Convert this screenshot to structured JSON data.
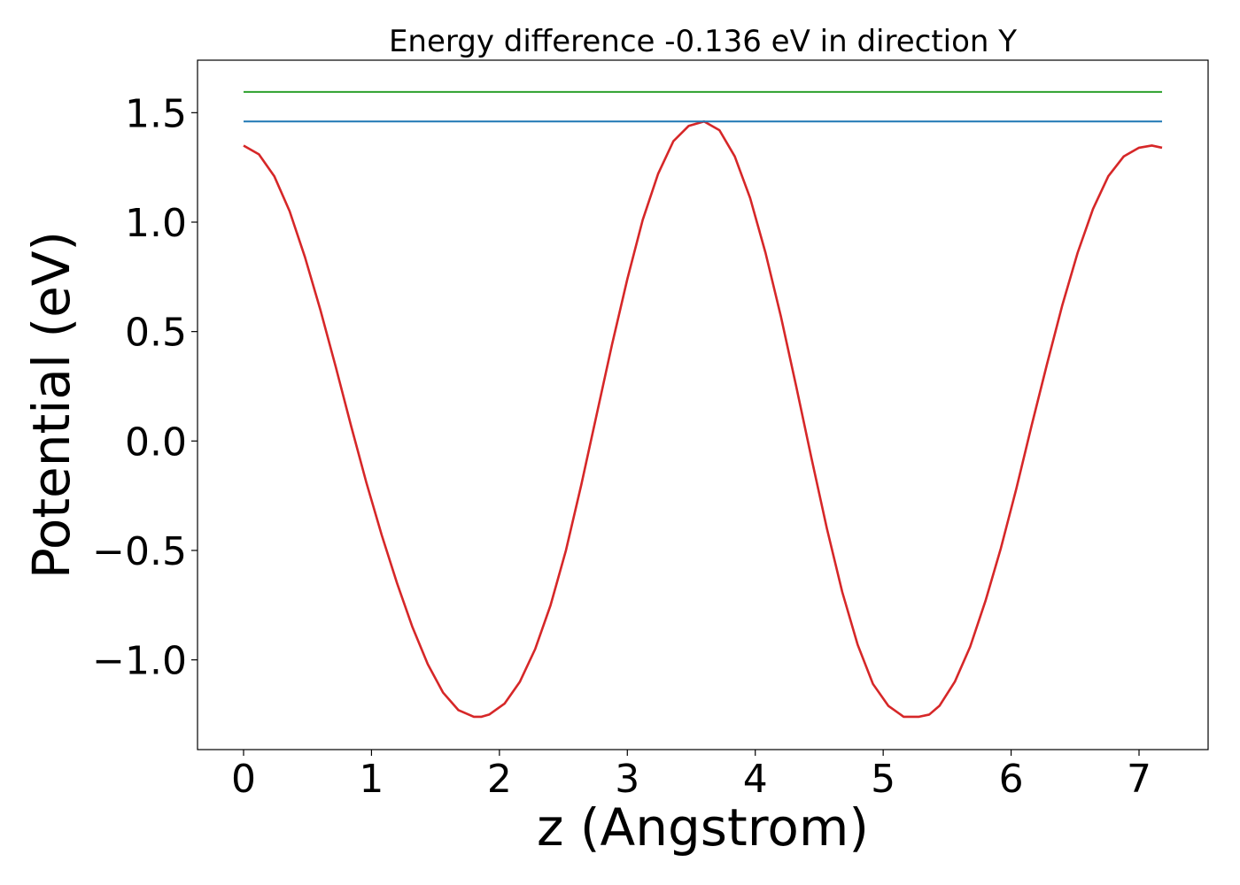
{
  "chart_data": {
    "type": "line",
    "title": "Energy difference -0.136 eV in direction Y",
    "xlabel": "z (Angstrom)",
    "ylabel": "Potential (eV)",
    "xlim": [
      -0.36,
      7.54
    ],
    "ylim": [
      -1.41,
      1.74
    ],
    "xticks": [
      0,
      1,
      2,
      3,
      4,
      5,
      6,
      7
    ],
    "xtick_labels": [
      "0",
      "1",
      "2",
      "3",
      "4",
      "5",
      "6",
      "7"
    ],
    "yticks": [
      -1.0,
      -0.5,
      0.0,
      0.5,
      1.0,
      1.5
    ],
    "ytick_labels": [
      "−1.0",
      "−0.5",
      "0.0",
      "0.5",
      "1.0",
      "1.5"
    ],
    "grid": false,
    "legend": "none",
    "series": [
      {
        "color": "#d62728",
        "x": [
          0.0,
          0.12,
          0.24,
          0.36,
          0.48,
          0.6,
          0.72,
          0.84,
          0.96,
          1.08,
          1.2,
          1.32,
          1.44,
          1.56,
          1.68,
          1.8,
          1.86,
          1.92,
          2.04,
          2.16,
          2.28,
          2.4,
          2.52,
          2.64,
          2.76,
          2.88,
          3.0,
          3.12,
          3.24,
          3.36,
          3.48,
          3.6,
          3.72,
          3.84,
          3.96,
          4.08,
          4.2,
          4.32,
          4.44,
          4.56,
          4.68,
          4.8,
          4.92,
          5.04,
          5.16,
          5.28,
          5.36,
          5.44,
          5.56,
          5.68,
          5.8,
          5.92,
          6.04,
          6.16,
          6.28,
          6.4,
          6.52,
          6.64,
          6.76,
          6.88,
          7.0,
          7.1,
          7.18
        ],
        "y": [
          1.35,
          1.31,
          1.21,
          1.05,
          0.84,
          0.6,
          0.34,
          0.07,
          -0.19,
          -0.43,
          -0.65,
          -0.85,
          -1.02,
          -1.15,
          -1.23,
          -1.26,
          -1.26,
          -1.25,
          -1.2,
          -1.1,
          -0.95,
          -0.75,
          -0.5,
          -0.2,
          0.12,
          0.44,
          0.74,
          1.01,
          1.22,
          1.37,
          1.44,
          1.46,
          1.42,
          1.3,
          1.11,
          0.86,
          0.57,
          0.25,
          -0.08,
          -0.4,
          -0.69,
          -0.93,
          -1.11,
          -1.21,
          -1.26,
          -1.26,
          -1.25,
          -1.21,
          -1.1,
          -0.94,
          -0.73,
          -0.49,
          -0.22,
          0.07,
          0.35,
          0.62,
          0.86,
          1.06,
          1.21,
          1.3,
          1.34,
          1.35,
          1.34
        ]
      },
      {
        "color": "#1f77b4",
        "x": [
          0.0,
          7.18
        ],
        "y": [
          1.46,
          1.46
        ]
      },
      {
        "color": "#2ca02c",
        "x": [
          0.0,
          7.18
        ],
        "y": [
          1.595,
          1.595
        ]
      }
    ]
  }
}
